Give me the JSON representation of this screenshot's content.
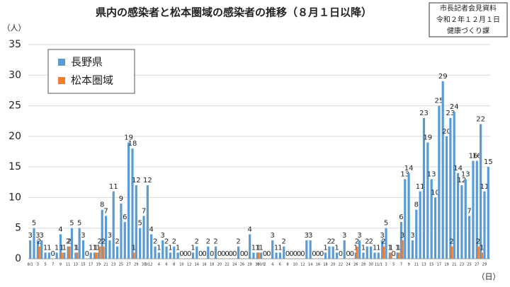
{
  "chart_data": {
    "type": "bar",
    "title": "県内の感染者と松本圏域の感染者の推移（８月１日以降）",
    "y_label": "（人）",
    "x_label": "（日）",
    "note": [
      "市長記者会見資料",
      "令和２年１２月１日",
      "健康づくり課"
    ],
    "ylim": [
      0,
      35
    ],
    "yticks": [
      0,
      5,
      10,
      15,
      20,
      25,
      30,
      35
    ],
    "grid": true,
    "legend": "upper left",
    "categories": [
      "8/1",
      null,
      "3",
      null,
      "5",
      null,
      "7",
      null,
      "9",
      null,
      "11",
      null,
      "13",
      null,
      "15",
      null,
      "17",
      null,
      "19",
      null,
      "21",
      null,
      "23",
      null,
      "25",
      null,
      "27",
      null,
      "29",
      null,
      "31",
      "9/1",
      "2",
      null,
      "4",
      null,
      "6",
      null,
      "8",
      null,
      "10",
      null,
      "12",
      null,
      "14",
      null,
      "16",
      null,
      "18",
      null,
      "20",
      null,
      "22",
      null,
      "24",
      null,
      "26",
      null,
      "28",
      null,
      "30",
      "10/1",
      "2",
      null,
      "4",
      null,
      "6",
      null,
      "8",
      null,
      "10",
      null,
      "12",
      null,
      "14",
      null,
      "16",
      null,
      "18",
      null,
      "20",
      null,
      "22",
      null,
      "24",
      null,
      "26",
      null,
      "28",
      null,
      "30",
      null,
      "11/1",
      null,
      "3",
      null,
      "5",
      null,
      "7",
      null,
      "9",
      null,
      "11",
      null,
      "13",
      null,
      "15",
      null,
      "17",
      null,
      "19",
      null,
      "21",
      null,
      "23",
      null,
      "25",
      null,
      "27",
      null,
      "29",
      null
    ],
    "series": [
      {
        "name": "長野県",
        "color": "#5b9bd5",
        "values": [
          3,
          5,
          3,
          3,
          1,
          1,
          0,
          1,
          4,
          1,
          2,
          5,
          1,
          5,
          3,
          0,
          1,
          1,
          1,
          8,
          7,
          3,
          11,
          2,
          9,
          6,
          19,
          18,
          12,
          5,
          7,
          12,
          4,
          2,
          1,
          3,
          2,
          1,
          2,
          1,
          0,
          0,
          0,
          1,
          2,
          0,
          0,
          2,
          0,
          2,
          0,
          0,
          0,
          0,
          0,
          2,
          0,
          0,
          4,
          1,
          1,
          1,
          0,
          0,
          3,
          1,
          1,
          2,
          0,
          0,
          0,
          0,
          0,
          3,
          3,
          0,
          0,
          0,
          1,
          2,
          2,
          1,
          0,
          3,
          0,
          0,
          1,
          3,
          1,
          2,
          2,
          1,
          1,
          3,
          5,
          1,
          0,
          1,
          6,
          13,
          14,
          3,
          8,
          11,
          23,
          19,
          13,
          10,
          25,
          29,
          20,
          23,
          24,
          14,
          12,
          13,
          7,
          16,
          16,
          22,
          11,
          15
        ]
      },
      {
        "name": "松本圏域",
        "color": "#ed7d31",
        "values": [
          0,
          0,
          2,
          0,
          0,
          0,
          0,
          0,
          1,
          0,
          2,
          0,
          1,
          0,
          0,
          0,
          0,
          1,
          2,
          2,
          0,
          0,
          0,
          0,
          0,
          0,
          0,
          1,
          0,
          0,
          0,
          0,
          0,
          0,
          0,
          0,
          0,
          0,
          0,
          0,
          0,
          0,
          0,
          0,
          0,
          0,
          0,
          0,
          0,
          0,
          0,
          0,
          0,
          0,
          0,
          0,
          0,
          0,
          0,
          0,
          1,
          0,
          0,
          0,
          0,
          0,
          0,
          0,
          0,
          0,
          0,
          0,
          0,
          0,
          0,
          0,
          0,
          0,
          0,
          0,
          0,
          0,
          0,
          0,
          0,
          0,
          2,
          0,
          0,
          0,
          0,
          0,
          0,
          2,
          0,
          1,
          0,
          1,
          3,
          0,
          0,
          0,
          0,
          0,
          0,
          0,
          0,
          0,
          0,
          0,
          0,
          2,
          0,
          0,
          0,
          0,
          0,
          0,
          2,
          1,
          0,
          0
        ]
      }
    ]
  }
}
